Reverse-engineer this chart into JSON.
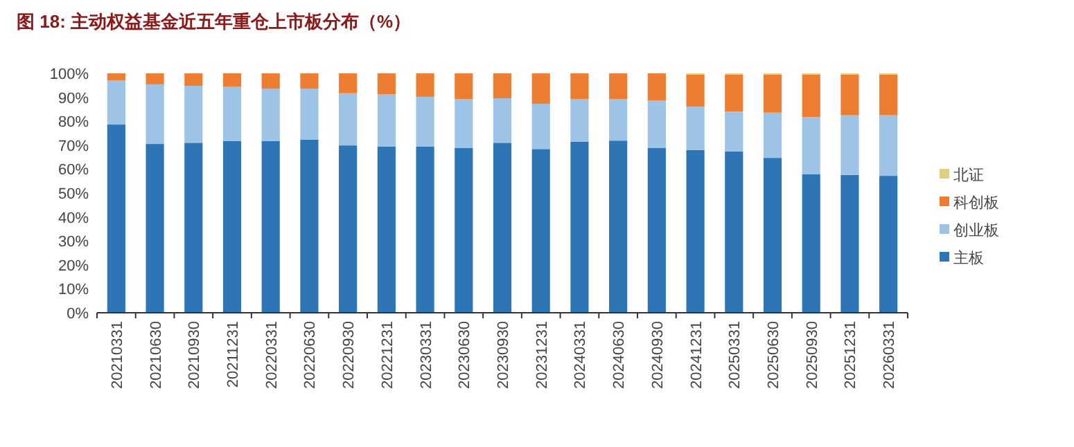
{
  "chart_data": {
    "type": "bar",
    "title": "图 18: 主动权益基金近五年重仓上市板分布（%）",
    "stacked": true,
    "legend": "right",
    "grid": false,
    "categories": [
      "20210331",
      "20210630",
      "20210930",
      "20211231",
      "20220331",
      "20220630",
      "20220930",
      "20221231",
      "20230331",
      "20230630",
      "20230930",
      "20231231",
      "20240331",
      "20240630",
      "20240930",
      "20241231",
      "20250331",
      "20250630",
      "20250930",
      "20251231",
      "20260331"
    ],
    "ylim": [
      0,
      100
    ],
    "yticks": [
      {
        "value": 0,
        "label": "0%"
      },
      {
        "value": 10,
        "label": "10%"
      },
      {
        "value": 20,
        "label": "20%"
      },
      {
        "value": 30,
        "label": "30%"
      },
      {
        "value": 40,
        "label": "40%"
      },
      {
        "value": 50,
        "label": "50%"
      },
      {
        "value": 60,
        "label": "60%"
      },
      {
        "value": 70,
        "label": "70%"
      },
      {
        "value": 80,
        "label": "80%"
      },
      {
        "value": 90,
        "label": "90%"
      },
      {
        "value": 100,
        "label": "100%"
      }
    ],
    "series": [
      {
        "name": "主板",
        "color": "#2e75b6",
        "values": [
          78.6,
          70.5,
          71.0,
          71.7,
          71.7,
          72.3,
          69.9,
          69.4,
          69.4,
          68.8,
          71.0,
          68.4,
          71.5,
          71.9,
          68.8,
          68.0,
          67.4,
          64.7,
          57.8,
          57.6,
          57.2
        ]
      },
      {
        "name": "创业板",
        "color": "#9dc3e6",
        "values": [
          18.4,
          24.9,
          23.8,
          22.7,
          21.9,
          21.3,
          21.8,
          21.8,
          20.8,
          20.4,
          18.6,
          18.9,
          17.7,
          17.3,
          19.8,
          18.1,
          16.6,
          18.9,
          23.9,
          24.9,
          25.3
        ]
      },
      {
        "name": "科创板",
        "color": "#ed7d31",
        "values": [
          3.0,
          4.6,
          5.2,
          5.6,
          6.4,
          6.4,
          8.3,
          8.8,
          9.8,
          10.8,
          10.4,
          12.7,
          10.8,
          10.8,
          11.4,
          13.4,
          15.5,
          15.9,
          17.8,
          17.0,
          17.0
        ]
      },
      {
        "name": "北证",
        "color": "#e0cf80",
        "values": [
          null,
          null,
          null,
          null,
          null,
          null,
          null,
          null,
          null,
          null,
          null,
          null,
          null,
          null,
          null,
          0.5,
          0.5,
          0.5,
          0.5,
          0.5,
          0.5
        ]
      }
    ]
  }
}
